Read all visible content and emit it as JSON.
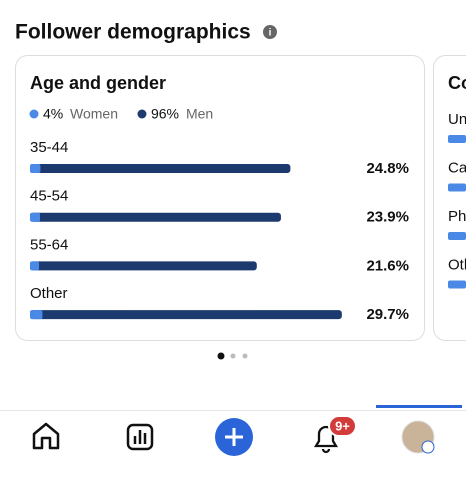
{
  "header": {
    "title": "Follower demographics"
  },
  "chart_data": {
    "type": "bar",
    "title": "Age and gender",
    "legend": [
      {
        "value": 4,
        "label": "4%",
        "name": "Women",
        "color": "#4a8ae6"
      },
      {
        "value": 96,
        "label": "96%",
        "name": "Men",
        "color": "#1d3a6e"
      }
    ],
    "categories": [
      "35-44",
      "45-54",
      "55-64",
      "Other"
    ],
    "values": [
      24.8,
      23.9,
      21.6,
      29.7
    ],
    "value_labels": [
      "24.8%",
      "23.9%",
      "21.6%",
      "29.7%"
    ]
  },
  "second_card": {
    "title": "Co",
    "items": [
      "Un",
      "Ca",
      "Ph",
      "Oth"
    ]
  },
  "nav": {
    "badge": "9+"
  }
}
